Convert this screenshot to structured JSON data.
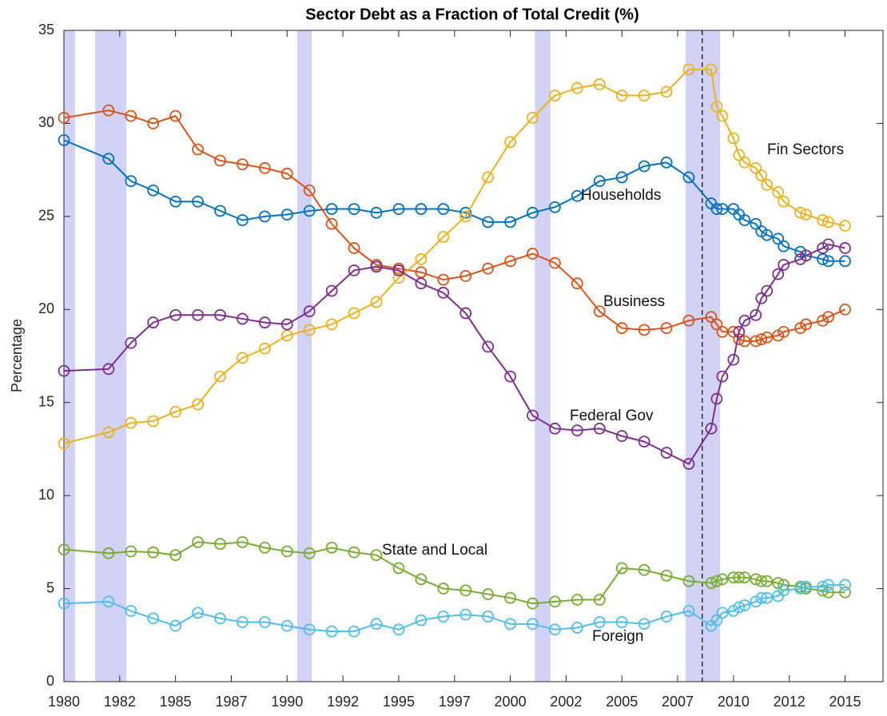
{
  "chart_data": {
    "type": "line",
    "title": "Sector Debt as a Fraction of Total Credit (%)",
    "y_label": "Percentage",
    "x": [
      1980,
      1982,
      1983,
      1984,
      1985,
      1986,
      1987,
      1988,
      1989,
      1990,
      1991,
      1992,
      1993,
      1994,
      1995,
      1996,
      1997,
      1998,
      1999,
      2000,
      2001,
      2002,
      2003,
      2004,
      2005,
      2006,
      2007,
      2008,
      2009,
      2009.25,
      2009.5,
      2010,
      2010.25,
      2010.5,
      2011,
      2011.25,
      2011.5,
      2012,
      2012.25,
      2013,
      2013.25,
      2014,
      2014.25,
      2015
    ],
    "series": [
      {
        "name": "Households",
        "color": "#0072BD",
        "values": [
          29.1,
          28.1,
          26.9,
          26.4,
          25.8,
          25.8,
          25.3,
          24.8,
          25.0,
          25.1,
          25.3,
          25.4,
          25.4,
          25.2,
          25.4,
          25.4,
          25.4,
          25.2,
          24.7,
          24.7,
          25.2,
          25.5,
          26.1,
          26.9,
          27.1,
          27.7,
          27.9,
          27.1,
          25.7,
          25.4,
          25.4,
          25.4,
          25.1,
          24.8,
          24.6,
          24.2,
          24.0,
          23.8,
          23.4,
          23.1,
          22.9,
          22.7,
          22.6,
          22.6
        ]
      },
      {
        "name": "Business",
        "color": "#D95319",
        "values": [
          30.3,
          30.7,
          30.4,
          30.0,
          30.4,
          28.6,
          28.0,
          27.8,
          27.6,
          27.3,
          26.4,
          24.6,
          23.3,
          22.4,
          22.2,
          22.0,
          21.6,
          21.8,
          22.2,
          22.6,
          23.0,
          22.5,
          21.4,
          19.9,
          19.0,
          18.9,
          19.0,
          19.4,
          19.6,
          19.2,
          18.8,
          18.8,
          18.4,
          18.3,
          18.3,
          18.4,
          18.5,
          18.6,
          18.8,
          19.0,
          19.2,
          19.4,
          19.6,
          20.0
        ]
      },
      {
        "name": "Fin Sectors",
        "color": "#EDB120",
        "values": [
          12.8,
          13.4,
          13.9,
          14.0,
          14.5,
          14.9,
          16.4,
          17.4,
          17.9,
          18.6,
          18.9,
          19.2,
          19.8,
          20.4,
          21.7,
          22.7,
          23.9,
          25.0,
          27.1,
          29.0,
          30.3,
          31.5,
          31.9,
          32.1,
          31.5,
          31.5,
          31.7,
          32.9,
          32.9,
          30.9,
          30.4,
          29.2,
          28.3,
          27.9,
          27.6,
          27.2,
          26.7,
          26.3,
          25.8,
          25.2,
          25.1,
          24.8,
          24.7,
          24.5
        ]
      },
      {
        "name": "Federal Gov",
        "color": "#7E2F8E",
        "values": [
          16.7,
          16.8,
          18.2,
          19.3,
          19.7,
          19.7,
          19.7,
          19.5,
          19.3,
          19.2,
          19.9,
          21.0,
          22.1,
          22.3,
          22.1,
          21.4,
          20.9,
          19.8,
          18.0,
          16.4,
          14.3,
          13.6,
          13.5,
          13.6,
          13.2,
          12.9,
          12.3,
          11.7,
          13.6,
          15.2,
          16.4,
          17.3,
          18.8,
          19.4,
          19.7,
          20.6,
          21.0,
          21.9,
          22.4,
          22.7,
          22.9,
          23.3,
          23.5,
          23.3
        ]
      },
      {
        "name": "State and Local",
        "color": "#77AC30",
        "values": [
          7.1,
          6.9,
          7.0,
          6.95,
          6.8,
          7.5,
          7.4,
          7.5,
          7.2,
          7.0,
          6.9,
          7.2,
          6.95,
          6.8,
          6.1,
          5.5,
          5.0,
          4.9,
          4.7,
          4.5,
          4.2,
          4.3,
          4.4,
          4.4,
          6.1,
          6.0,
          5.7,
          5.4,
          5.3,
          5.4,
          5.5,
          5.6,
          5.6,
          5.6,
          5.5,
          5.4,
          5.4,
          5.3,
          5.2,
          5.1,
          5.0,
          4.9,
          4.8,
          4.8
        ]
      },
      {
        "name": "Foreign",
        "color": "#4DBEEE",
        "values": [
          4.2,
          4.3,
          3.8,
          3.4,
          3.0,
          3.7,
          3.4,
          3.2,
          3.2,
          3.0,
          2.8,
          2.7,
          2.7,
          3.1,
          2.8,
          3.3,
          3.5,
          3.6,
          3.5,
          3.1,
          3.1,
          2.8,
          2.9,
          3.2,
          3.2,
          3.1,
          3.5,
          3.8,
          3.0,
          3.3,
          3.7,
          3.8,
          4.0,
          4.1,
          4.3,
          4.5,
          4.5,
          4.6,
          4.9,
          5.0,
          5.1,
          5.1,
          5.2,
          5.2
        ]
      }
    ],
    "xlim": [
      1980,
      2016.7
    ],
    "ylim": [
      0,
      35
    ],
    "xticks": [
      1980,
      {
        "value": 1982.5,
        "label": "1982"
      },
      1985,
      {
        "value": 1987.5,
        "label": "1987"
      },
      1990,
      {
        "value": 1992.5,
        "label": "1992"
      },
      1995,
      {
        "value": 1997.5,
        "label": "1997"
      },
      2000,
      {
        "value": 2002.5,
        "label": "2002"
      },
      2005,
      {
        "value": 2007.5,
        "label": "2007"
      },
      2010,
      {
        "value": 2012.5,
        "label": "2012"
      },
      2015
    ],
    "yticks": [
      0,
      5,
      10,
      15,
      20,
      25,
      30,
      35
    ],
    "shaded_ranges": [
      [
        1980,
        1980.5
      ],
      [
        1981.4,
        1982.8
      ],
      [
        1990.45,
        1991.1
      ],
      [
        2001.1,
        2001.8
      ],
      [
        2007.85,
        2009.4
      ]
    ],
    "shade_color": "#d2d2f7",
    "dashed_line_x": 2008.6,
    "grid": false
  }
}
